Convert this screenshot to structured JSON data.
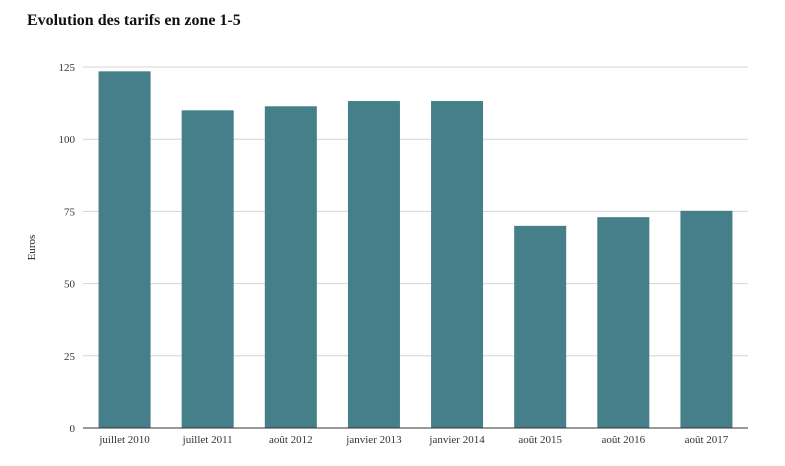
{
  "chart_data": {
    "type": "bar",
    "title": "Evolution des tarifs en zone 1-5",
    "xlabel": "",
    "ylabel": "Euros",
    "categories": [
      "juillet 2010",
      "juillet 2011",
      "août 2012",
      "janvier 2013",
      "janvier 2014",
      "août 2015",
      "août 2016",
      "août 2017"
    ],
    "values": [
      123.5,
      110,
      111.4,
      113.2,
      113.2,
      70,
      73,
      75.2
    ],
    "ylim": [
      0,
      125
    ],
    "yticks": [
      0,
      25,
      50,
      75,
      100,
      125
    ],
    "grid": true,
    "legend": "none",
    "bar_color": "#447f8a",
    "grid_color": "#d4d4d4",
    "axis_color": "#333333"
  }
}
